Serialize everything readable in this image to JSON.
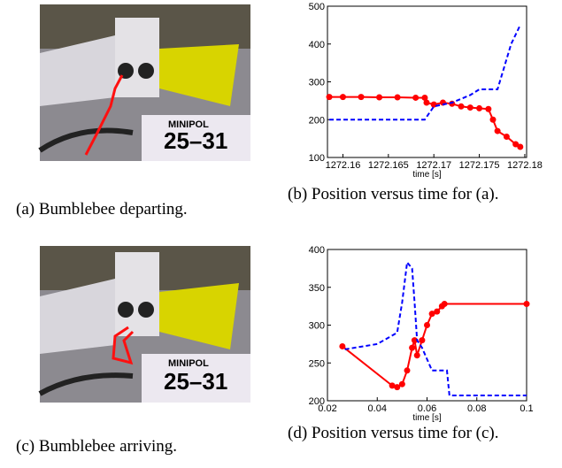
{
  "photos": [
    {
      "plate_label": "MINIPOL",
      "plate_number": "25–31"
    },
    {
      "plate_label": "MINIPOL",
      "plate_number": "25–31"
    }
  ],
  "captions": [
    "(a) Bumblebee departing.",
    "(b) Position versus time for (a).",
    "(c) Bumblebee arriving.",
    "(d) Position versus time for (c)."
  ],
  "chart_data": [
    {
      "type": "line",
      "xlabel": "time [s]",
      "xlim": [
        1272.1583,
        1272.1802
      ],
      "xticks": [
        1272.16,
        1272.165,
        1272.17,
        1272.175,
        1272.18
      ],
      "ylim": [
        100,
        500
      ],
      "yticks": [
        100,
        200,
        300,
        400,
        500
      ],
      "series": [
        {
          "color": "#ff0000",
          "linestyle": "solid",
          "marker": true,
          "x": [
            1272.1585,
            1272.16,
            1272.162,
            1272.164,
            1272.166,
            1272.168,
            1272.169,
            1272.1692,
            1272.17,
            1272.171,
            1272.172,
            1272.173,
            1272.174,
            1272.175,
            1272.176,
            1272.1765,
            1272.177,
            1272.178,
            1272.179,
            1272.1795
          ],
          "values": [
            260,
            260,
            260,
            259,
            259,
            258,
            258,
            245,
            240,
            245,
            242,
            235,
            232,
            230,
            228,
            200,
            170,
            155,
            135,
            128
          ]
        },
        {
          "color": "#0000ff",
          "linestyle": "dashed",
          "marker": false,
          "x": [
            1272.1585,
            1272.169,
            1272.17,
            1272.172,
            1272.174,
            1272.175,
            1272.177,
            1272.1775,
            1272.1785,
            1272.1795
          ],
          "values": [
            200,
            200,
            235,
            245,
            265,
            280,
            280,
            320,
            400,
            450
          ]
        }
      ]
    },
    {
      "type": "line",
      "xlabel": "time [s]",
      "xlim": [
        0.02,
        0.1
      ],
      "xticks": [
        0.02,
        0.04,
        0.06,
        0.08,
        0.1
      ],
      "ylim": [
        200,
        400
      ],
      "yticks": [
        200,
        250,
        300,
        350,
        400
      ],
      "series": [
        {
          "color": "#ff0000",
          "linestyle": "solid",
          "marker": true,
          "x": [
            0.026,
            0.046,
            0.048,
            0.05,
            0.052,
            0.054,
            0.055,
            0.056,
            0.058,
            0.06,
            0.062,
            0.064,
            0.066,
            0.067,
            0.1
          ],
          "values": [
            272,
            220,
            218,
            222,
            240,
            270,
            280,
            260,
            280,
            300,
            315,
            318,
            325,
            328,
            328
          ]
        },
        {
          "color": "#0000ff",
          "linestyle": "dashed",
          "marker": false,
          "x": [
            0.027,
            0.04,
            0.048,
            0.05,
            0.052,
            0.054,
            0.055,
            0.056,
            0.058,
            0.06,
            0.062,
            0.068,
            0.069,
            0.1
          ],
          "values": [
            268,
            275,
            290,
            330,
            383,
            375,
            330,
            280,
            270,
            255,
            240,
            240,
            207,
            207
          ]
        }
      ]
    }
  ]
}
